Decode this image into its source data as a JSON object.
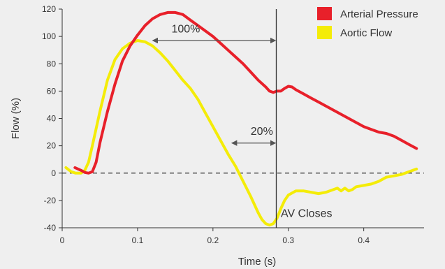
{
  "chart_data": {
    "type": "line",
    "xlabel": "Time (s)",
    "ylabel": "Flow (%)",
    "xlim": [
      0,
      0.48
    ],
    "ylim": [
      -40,
      120
    ],
    "xticks": [
      0,
      0.1,
      0.2,
      0.3,
      0.4
    ],
    "xtick_labels": [
      "0",
      "0.1",
      "0.2",
      "0.3",
      "0.4"
    ],
    "yticks": [
      -40,
      -20,
      0,
      20,
      40,
      60,
      80,
      100,
      120
    ],
    "ytick_labels": [
      "-40",
      "-20",
      "0",
      "20",
      "40",
      "60",
      "80",
      "100",
      "120"
    ],
    "grid": false,
    "legend_position": "top-right",
    "series": [
      {
        "name": "Arterial Pressure",
        "color": "#e8202a",
        "x": [
          0.017,
          0.025,
          0.03,
          0.035,
          0.04,
          0.045,
          0.05,
          0.06,
          0.07,
          0.08,
          0.09,
          0.1,
          0.11,
          0.12,
          0.13,
          0.14,
          0.15,
          0.16,
          0.17,
          0.18,
          0.19,
          0.2,
          0.21,
          0.22,
          0.23,
          0.24,
          0.25,
          0.26,
          0.27,
          0.275,
          0.28,
          0.285,
          0.29,
          0.295,
          0.3,
          0.305,
          0.31,
          0.32,
          0.33,
          0.34,
          0.35,
          0.36,
          0.37,
          0.38,
          0.39,
          0.4,
          0.41,
          0.42,
          0.43,
          0.44,
          0.45,
          0.46,
          0.47
        ],
        "y": [
          4,
          2,
          0.5,
          0,
          1,
          8,
          22,
          45,
          65,
          82,
          93,
          101,
          108,
          113,
          116,
          117.5,
          117.5,
          116,
          112,
          108,
          104,
          100,
          95,
          90,
          85,
          80,
          74,
          68,
          63,
          60,
          59,
          60,
          60,
          62,
          63.5,
          63,
          61,
          58,
          55,
          52,
          49,
          46,
          43,
          40,
          37,
          34,
          32,
          30,
          29,
          27,
          24,
          21,
          18
        ]
      },
      {
        "name": "Aortic Flow",
        "color": "#f4ec08",
        "x": [
          0.005,
          0.012,
          0.018,
          0.025,
          0.03,
          0.035,
          0.04,
          0.05,
          0.06,
          0.07,
          0.08,
          0.09,
          0.1,
          0.11,
          0.12,
          0.13,
          0.14,
          0.15,
          0.16,
          0.17,
          0.18,
          0.19,
          0.2,
          0.21,
          0.22,
          0.23,
          0.24,
          0.25,
          0.26,
          0.265,
          0.27,
          0.275,
          0.28,
          0.285,
          0.29,
          0.295,
          0.3,
          0.31,
          0.32,
          0.33,
          0.34,
          0.35,
          0.36,
          0.365,
          0.37,
          0.375,
          0.38,
          0.385,
          0.39,
          0.4,
          0.41,
          0.42,
          0.43,
          0.44,
          0.45,
          0.46,
          0.47
        ],
        "y": [
          4,
          1,
          0,
          0,
          2,
          8,
          20,
          45,
          68,
          83,
          91,
          95,
          97,
          96,
          93,
          88,
          82,
          75,
          68,
          62,
          54,
          44,
          34,
          24,
          14,
          5,
          -6,
          -17,
          -29,
          -34,
          -37,
          -38,
          -37,
          -33,
          -26,
          -20,
          -16,
          -13,
          -13,
          -14,
          -15,
          -14,
          -12,
          -11,
          -13,
          -11,
          -13,
          -12,
          -10,
          -9,
          -8,
          -6,
          -3,
          -2,
          -1,
          1,
          3
        ]
      }
    ],
    "annotations": [
      {
        "text": "100%",
        "x": 0.145,
        "y": 103,
        "arrow_from": 0.12,
        "arrow_to": 0.283,
        "arrow_y": 97
      },
      {
        "text": "20%",
        "x": 0.25,
        "y": 28,
        "arrow_from": 0.225,
        "arrow_to": 0.283,
        "arrow_y": 22
      },
      {
        "text": "AV Closes",
        "x": 0.29,
        "y": -32
      }
    ],
    "marker_x": 0.284,
    "zero_line": 0
  }
}
